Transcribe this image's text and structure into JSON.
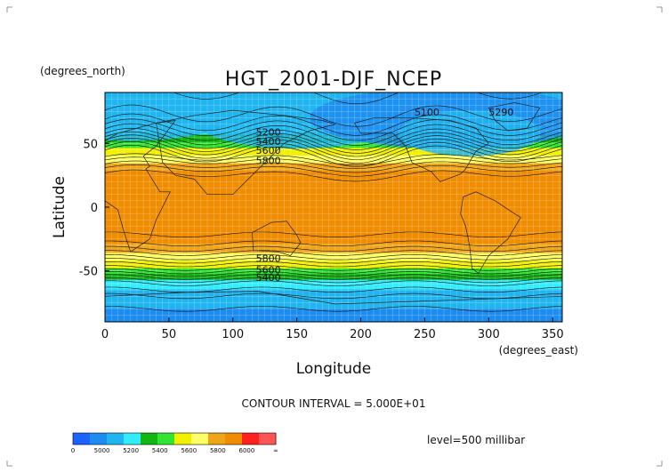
{
  "chart_data": {
    "type": "heatmap",
    "title": "HGT_2001-DJF_NCEP",
    "xlabel": "Longitude",
    "ylabel": "Latitude",
    "x_units": "(degrees_east)",
    "y_units": "(degrees_north)",
    "xlim": [
      0,
      357.5
    ],
    "ylim": [
      -90,
      90
    ],
    "x_ticks": [
      0,
      50,
      100,
      150,
      200,
      250,
      300,
      350
    ],
    "y_ticks": [
      50,
      0,
      -50
    ],
    "contour_interval_text": "CONTOUR INTERVAL = 5.000E+01",
    "level_text": "level=500 millibar",
    "colorbar": {
      "labels": [
        "0",
        "5000",
        "5200",
        "5400",
        "5600",
        "5800",
        "6000",
        "∞"
      ],
      "colors": [
        "#1a63ff",
        "#1d8cf0",
        "#1fb5f0",
        "#33ecff",
        "#12b512",
        "#33e533",
        "#f0f000",
        "#ffff66",
        "#f0a518",
        "#f08c00",
        "#ff2020",
        "#ff5555"
      ]
    },
    "zonal_profile": {
      "lat": [
        90,
        75,
        65,
        55,
        50,
        45,
        40,
        35,
        30,
        25,
        0,
        -20,
        -25,
        -30,
        -35,
        -40,
        -45,
        -50,
        -55,
        -60,
        -70,
        -90
      ],
      "hgt": [
        5100,
        5130,
        5200,
        5330,
        5420,
        5520,
        5610,
        5700,
        5790,
        5850,
        5880,
        5860,
        5830,
        5790,
        5720,
        5640,
        5550,
        5460,
        5350,
        5250,
        5150,
        5050
      ]
    },
    "contour_labels": [
      "5200",
      "5400",
      "5600",
      "5800",
      "5100",
      "5290"
    ],
    "grid": true
  },
  "colors": {
    "land_outline": "#222222",
    "grid": "#ffffff"
  }
}
